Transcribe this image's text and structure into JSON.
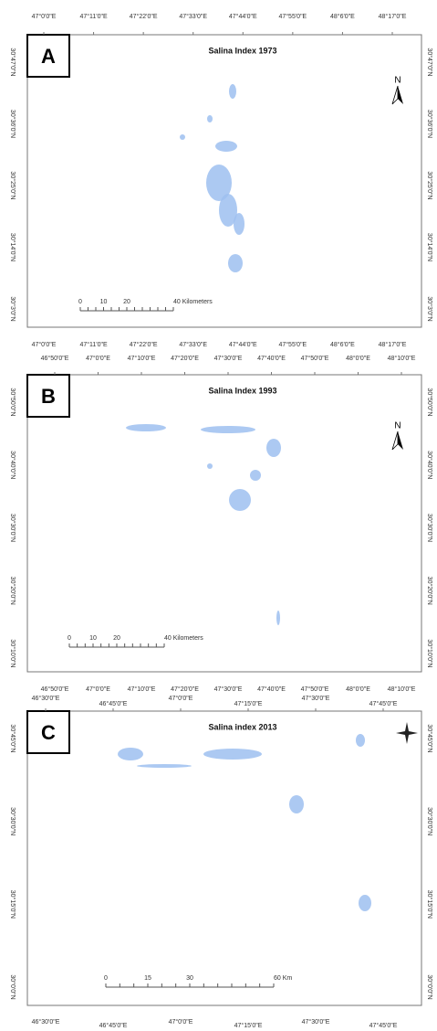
{
  "panels": [
    {
      "label": "A",
      "title": "Salina Index 1973",
      "north": "N",
      "top_ticks": [
        "47°0'0\"E",
        "47°11'0\"E",
        "47°22'0\"E",
        "47°33'0\"E",
        "47°44'0\"E",
        "47°55'0\"E",
        "48°6'0\"E",
        "48°17'0\"E"
      ],
      "left_ticks": [
        "30°47'0\"N",
        "30°36'0\"N",
        "30°25'0\"N",
        "30°14'0\"N",
        "30°3'0\"N"
      ],
      "scale": [
        "0",
        "10",
        "20",
        "40 Kilometers"
      ]
    },
    {
      "label": "B",
      "title": "Salina Index 1993",
      "north": "N",
      "top_ticks": [
        "46°50'0\"E",
        "47°0'0\"E",
        "47°10'0\"E",
        "47°20'0\"E",
        "47°30'0\"E",
        "47°40'0\"E",
        "47°50'0\"E",
        "48°0'0\"E",
        "48°10'0\"E"
      ],
      "left_ticks": [
        "30°50'0\"N",
        "30°40'0\"N",
        "30°30'0\"N",
        "30°20'0\"N",
        "30°10'0\"N"
      ],
      "scale": [
        "0",
        "10",
        "20",
        "40 Kilometers"
      ]
    },
    {
      "label": "C",
      "title": "Salina index 2013",
      "top_ticks": [
        "46°30'0\"E",
        "46°45'0\"E",
        "47°0'0\"E",
        "47°15'0\"E",
        "47°30'0\"E",
        "47°45'0\"E"
      ],
      "left_ticks": [
        "30°45'0\"N",
        "30°30'0\"N",
        "30°15'0\"N",
        "30°0'0\"N"
      ],
      "scale": [
        "0",
        "15",
        "30",
        "60 Km"
      ]
    }
  ]
}
